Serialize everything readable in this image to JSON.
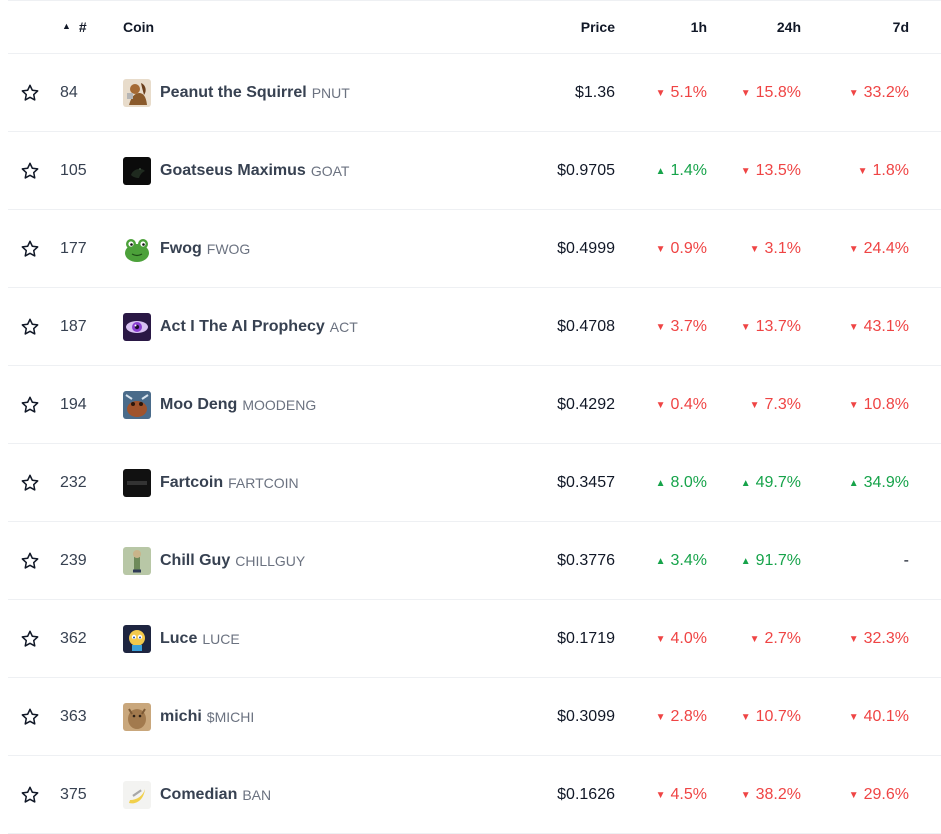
{
  "header": {
    "sort_caret": "▲",
    "rank": "#",
    "coin": "Coin",
    "price": "Price",
    "h1": "1h",
    "h24": "24h",
    "d7": "7d"
  },
  "colors": {
    "down": "#ef4444",
    "up": "#16a34a"
  },
  "rows": [
    {
      "rank": "84",
      "name": "Peanut the Squirrel",
      "symbol": "PNUT",
      "price": "$1.36",
      "h1": "5.1%",
      "h1_dir": "down",
      "h24": "15.8%",
      "h24_dir": "down",
      "d7": "33.2%",
      "d7_dir": "down",
      "logo": "squirrel"
    },
    {
      "rank": "105",
      "name": "Goatseus Maximus",
      "symbol": "GOAT",
      "price": "$0.9705",
      "h1": "1.4%",
      "h1_dir": "up",
      "h24": "13.5%",
      "h24_dir": "down",
      "d7": "1.8%",
      "d7_dir": "down",
      "logo": "goat"
    },
    {
      "rank": "177",
      "name": "Fwog",
      "symbol": "FWOG",
      "price": "$0.4999",
      "h1": "0.9%",
      "h1_dir": "down",
      "h24": "3.1%",
      "h24_dir": "down",
      "d7": "24.4%",
      "d7_dir": "down",
      "logo": "frog"
    },
    {
      "rank": "187",
      "name": "Act I The AI Prophecy",
      "symbol": "ACT",
      "price": "$0.4708",
      "h1": "3.7%",
      "h1_dir": "down",
      "h24": "13.7%",
      "h24_dir": "down",
      "d7": "43.1%",
      "d7_dir": "down",
      "logo": "act"
    },
    {
      "rank": "194",
      "name": "Moo Deng",
      "symbol": "MOODENG",
      "price": "$0.4292",
      "h1": "0.4%",
      "h1_dir": "down",
      "h24": "7.3%",
      "h24_dir": "down",
      "d7": "10.8%",
      "d7_dir": "down",
      "logo": "moodeng"
    },
    {
      "rank": "232",
      "name": "Fartcoin",
      "symbol": "FARTCOIN",
      "price": "$0.3457",
      "h1": "8.0%",
      "h1_dir": "up",
      "h24": "49.7%",
      "h24_dir": "up",
      "d7": "34.9%",
      "d7_dir": "up",
      "logo": "fartcoin"
    },
    {
      "rank": "239",
      "name": "Chill Guy",
      "symbol": "CHILLGUY",
      "price": "$0.3776",
      "h1": "3.4%",
      "h1_dir": "up",
      "h24": "91.7%",
      "h24_dir": "up",
      "d7": "-",
      "d7_dir": "none",
      "logo": "chillguy"
    },
    {
      "rank": "362",
      "name": "Luce",
      "symbol": "LUCE",
      "price": "$0.1719",
      "h1": "4.0%",
      "h1_dir": "down",
      "h24": "2.7%",
      "h24_dir": "down",
      "d7": "32.3%",
      "d7_dir": "down",
      "logo": "luce"
    },
    {
      "rank": "363",
      "name": "michi",
      "symbol": "$MICHI",
      "price": "$0.3099",
      "h1": "2.8%",
      "h1_dir": "down",
      "h24": "10.7%",
      "h24_dir": "down",
      "d7": "40.1%",
      "d7_dir": "down",
      "logo": "michi"
    },
    {
      "rank": "375",
      "name": "Comedian",
      "symbol": "BAN",
      "price": "$0.1626",
      "h1": "4.5%",
      "h1_dir": "down",
      "h24": "38.2%",
      "h24_dir": "down",
      "d7": "29.6%",
      "d7_dir": "down",
      "logo": "banana"
    }
  ]
}
